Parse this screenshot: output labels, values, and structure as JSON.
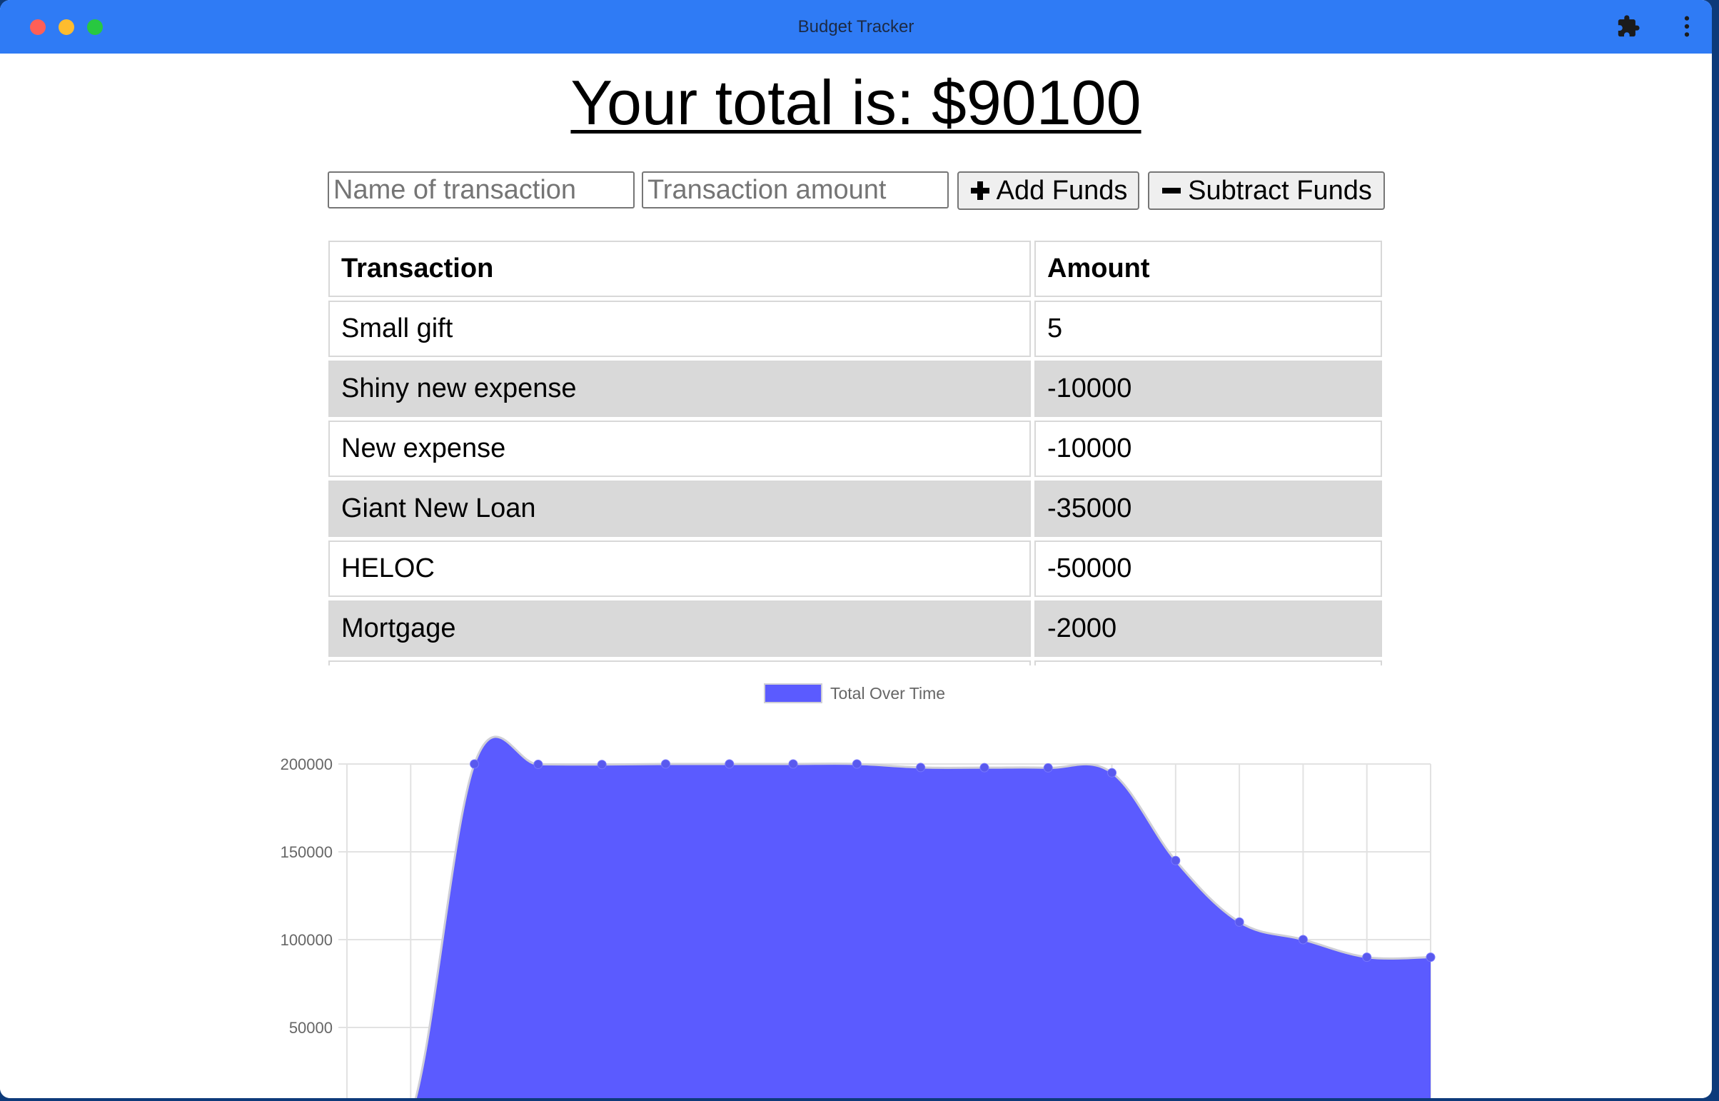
{
  "window": {
    "title": "Budget Tracker",
    "extensions_icon": "puzzle-piece-icon",
    "menu_icon": "vertical-ellipsis-icon"
  },
  "header": {
    "total_text": "Your total is: $90100"
  },
  "form": {
    "name_placeholder": "Name of transaction",
    "amount_placeholder": "Transaction amount",
    "add_label": "Add Funds",
    "add_icon": "plus-icon",
    "subtract_label": "Subtract Funds",
    "subtract_icon": "minus-icon"
  },
  "table": {
    "headers": [
      "Transaction",
      "Amount"
    ],
    "rows": [
      {
        "name": "Small gift",
        "amount": "5"
      },
      {
        "name": "Shiny new expense",
        "amount": "-10000"
      },
      {
        "name": "New expense",
        "amount": "-10000"
      },
      {
        "name": "Giant New Loan",
        "amount": "-35000"
      },
      {
        "name": "HELOC",
        "amount": "-50000"
      },
      {
        "name": "Mortgage",
        "amount": "-2000"
      }
    ]
  },
  "colors": {
    "titlebar": "#2f7bf5",
    "series_fill": "#5b5bff",
    "series_point": "#5959ee",
    "row_alt": "#d9d9d9"
  },
  "chart_data": {
    "type": "area",
    "title": "",
    "xlabel": "",
    "ylabel": "",
    "ylim": [
      0,
      200000
    ],
    "yticks": [
      0,
      50000,
      100000,
      150000,
      200000
    ],
    "grid": true,
    "legend": "top-center",
    "series": [
      {
        "name": "Total Over Time",
        "values": [
          0,
          0,
          200000,
          199800,
          199700,
          200000,
          200000,
          200000,
          200000,
          198000,
          197900,
          197800,
          195000,
          145000,
          110000,
          100000,
          90000,
          90000
        ]
      }
    ]
  }
}
